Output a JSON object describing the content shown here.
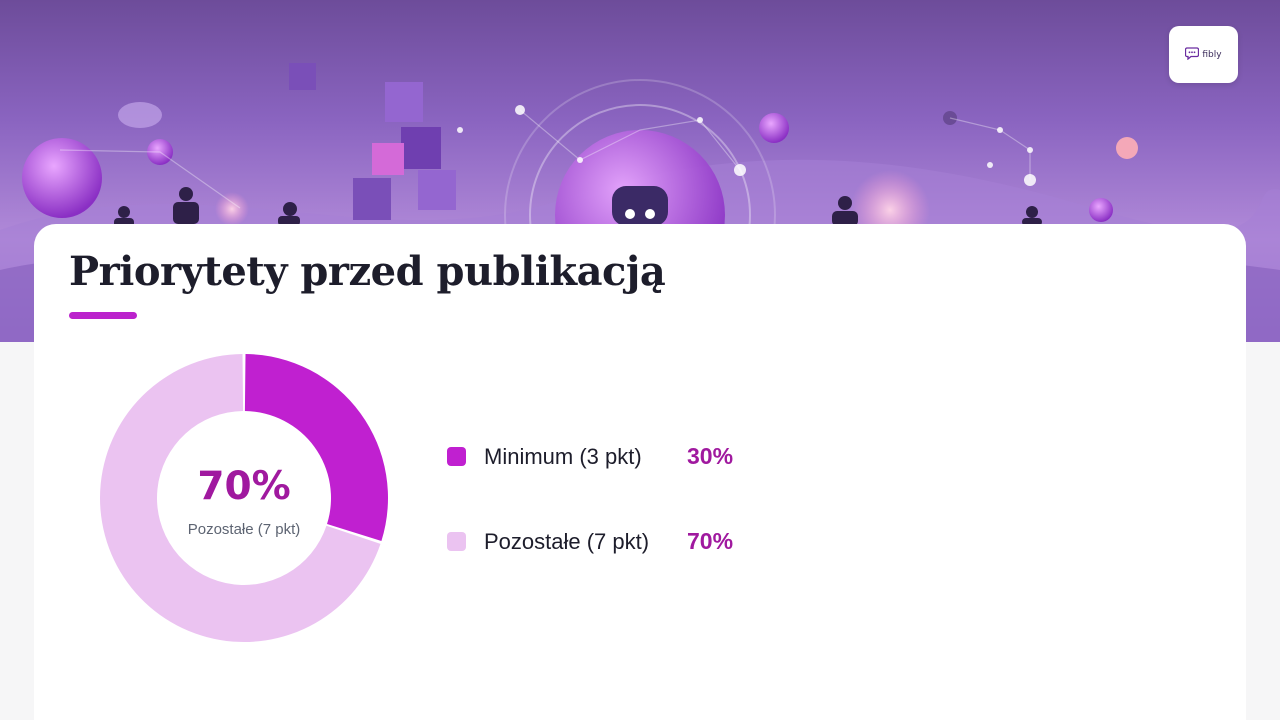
{
  "logo": {
    "text": "fibly",
    "icon": "chat-bubble-icon"
  },
  "title": "Priorytety przed publikacją",
  "colors": {
    "primary": "#c020d0",
    "secondary": "#ebc3f1",
    "accent": "#a0199f"
  },
  "chart_data": {
    "type": "pie",
    "variant": "donut",
    "title": "Priorytety przed publikacją",
    "center": {
      "value": "70%",
      "label": "Pozostałe (7 pkt)"
    },
    "legend_position": "right",
    "slices": [
      {
        "label": "Minimum (3 pkt)",
        "value": 30,
        "display": "30%",
        "color": "#c020d0"
      },
      {
        "label": "Pozostałe (7 pkt)",
        "value": 70,
        "display": "70%",
        "color": "#ebc3f1"
      }
    ]
  }
}
